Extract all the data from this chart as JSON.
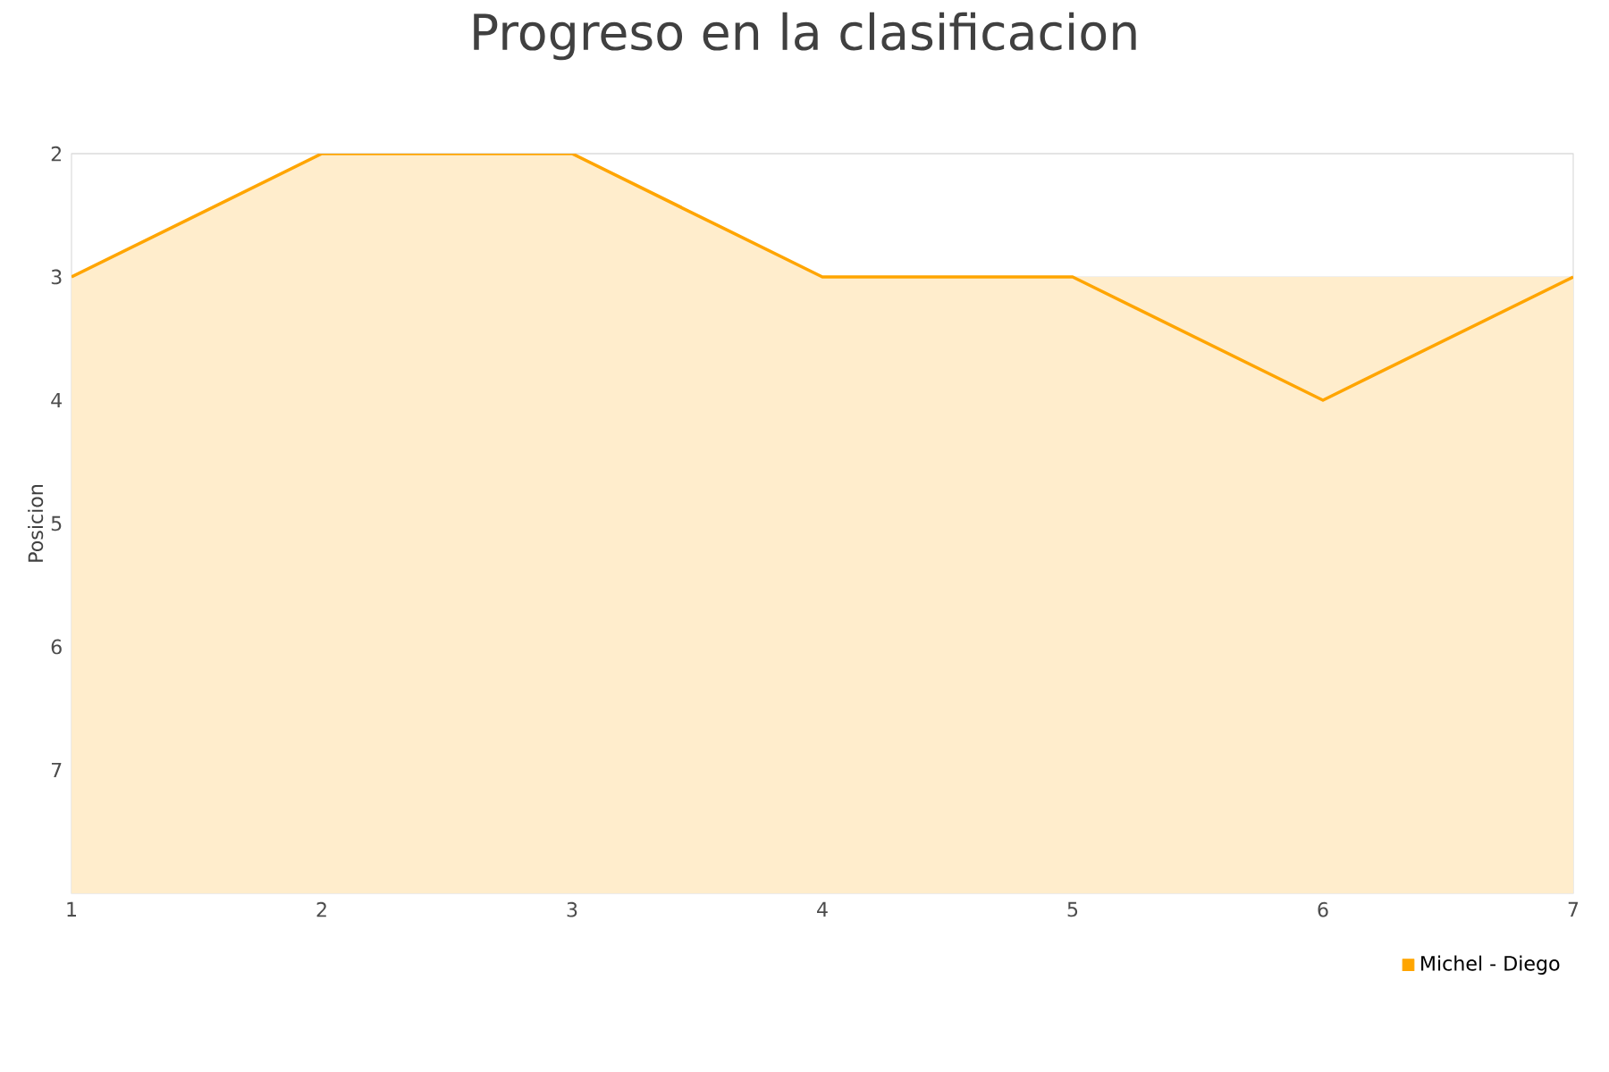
{
  "chart_data": {
    "type": "area",
    "title": "Progreso en la clasificacion",
    "ylabel": "Posicion",
    "x": [
      1,
      2,
      3,
      4,
      5,
      6,
      7
    ],
    "series": [
      {
        "name": "Michel - Diego",
        "color": "#ffa500",
        "values": [
          3,
          2,
          2,
          3,
          3,
          4,
          3
        ]
      }
    ],
    "xlim": [
      1,
      7
    ],
    "xticks": [
      1,
      2,
      3,
      4,
      5,
      6,
      7
    ],
    "ylim": [
      8,
      2
    ],
    "yticks": [
      2,
      3,
      4,
      5,
      6,
      7
    ],
    "grid": "y",
    "legend": "bottom right",
    "marker": "none",
    "line_style": "solid"
  }
}
